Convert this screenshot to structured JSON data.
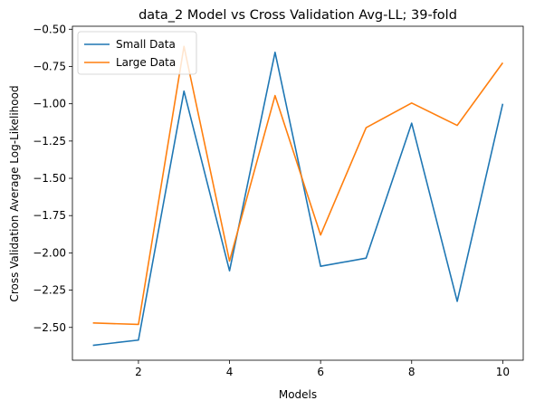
{
  "chart_data": {
    "type": "line",
    "title": "data_2 Model vs Cross Validation Avg-LL; 39-fold",
    "xlabel": "Models",
    "ylabel": "Cross Validation Average Log-Likelihood",
    "x": [
      1,
      2,
      3,
      4,
      5,
      6,
      7,
      8,
      9,
      10
    ],
    "xlim": [
      0.55,
      10.45
    ],
    "ylim": [
      -2.72,
      -0.48
    ],
    "xticks": [
      2,
      4,
      6,
      8,
      10
    ],
    "yticks": [
      -0.5,
      -0.75,
      -1.0,
      -1.25,
      -1.5,
      -1.75,
      -2.0,
      -2.25,
      -2.5
    ],
    "ytick_labels": [
      "−0.50",
      "−0.75",
      "−1.00",
      "−1.25",
      "−1.50",
      "−1.75",
      "−2.00",
      "−2.25",
      "−2.50"
    ],
    "grid": false,
    "legend_position": "top-left",
    "series": [
      {
        "name": "Small Data",
        "color": "#1f77b4",
        "values": [
          -2.62,
          -2.585,
          -0.915,
          -2.12,
          -0.655,
          -2.09,
          -2.035,
          -1.13,
          -2.325,
          -1.0
        ]
      },
      {
        "name": "Large Data",
        "color": "#ff7f0e",
        "values": [
          -2.47,
          -2.48,
          -0.615,
          -2.055,
          -0.945,
          -1.88,
          -1.16,
          -0.995,
          -1.145,
          -0.725
        ]
      }
    ]
  }
}
